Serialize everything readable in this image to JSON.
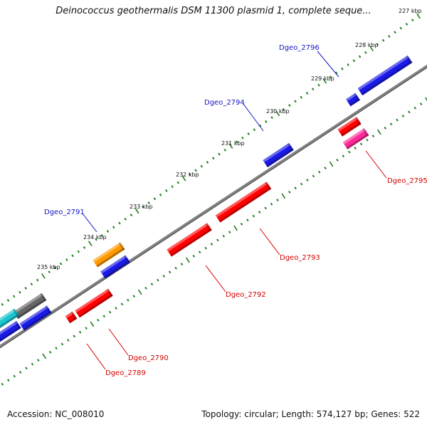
{
  "title": "Deinococcus geothermalis DSM 11300 plasmid 1, complete seque...",
  "footer": {
    "accession": "Accession: NC_008010",
    "summary": "Topology: circular; Length: 574,127 bp; Genes: 522"
  },
  "colors": {
    "backbone": "#808080",
    "tick": "#1a7f1a",
    "forward_label": "#1515c8",
    "reverse_label": "#d40000",
    "blue": "#1a1ae6",
    "red": "#ff0000",
    "orange": "#ff9900",
    "magenta": "#ff2a9a",
    "gray": "#666666",
    "cyan": "#19c6d0"
  },
  "ruler_labels": [
    "227 kbp",
    "228 kbp",
    "229 kbp",
    "230 kbp",
    "231 kbp",
    "232 kbp",
    "233 kbp",
    "234 kbp",
    "235 kbp"
  ],
  "gene_labels": {
    "forward": [
      "Dgeo_2796",
      "Dgeo_2794",
      "Dgeo_2791"
    ],
    "reverse": [
      "Dgeo_2795",
      "Dgeo_2793",
      "Dgeo_2792",
      "Dgeo_2790",
      "Dgeo_2789"
    ]
  }
}
